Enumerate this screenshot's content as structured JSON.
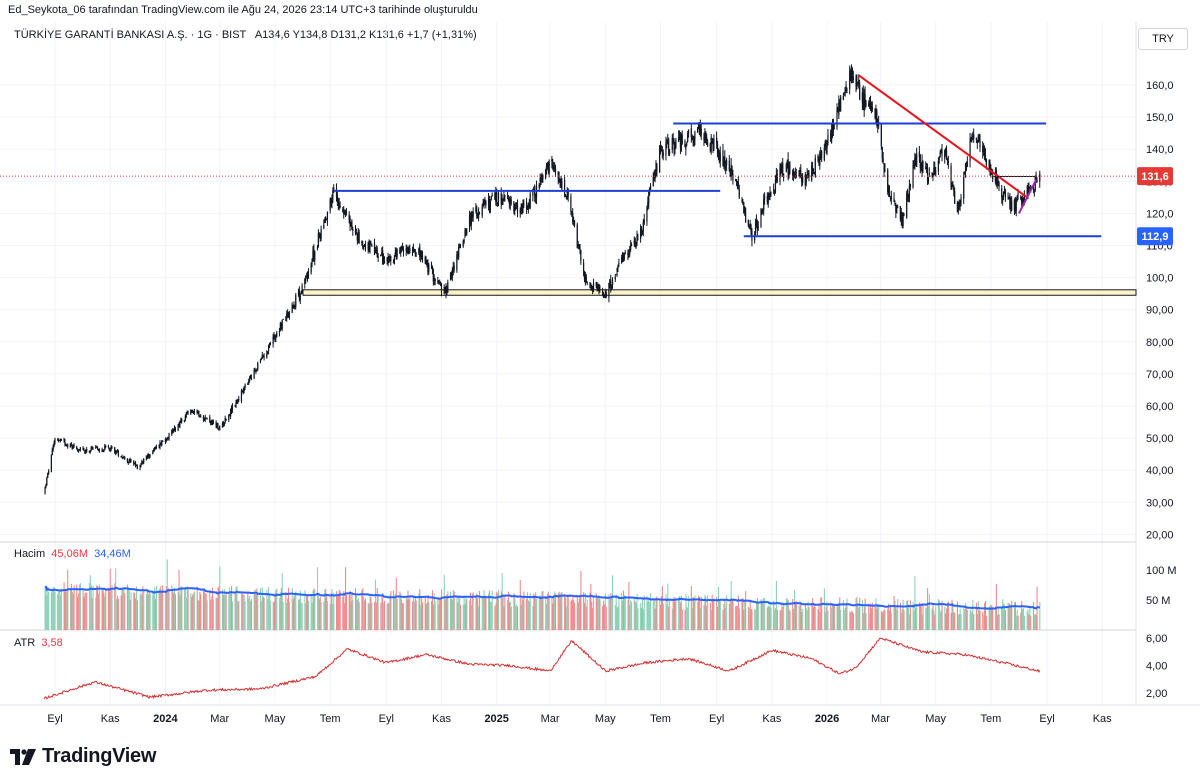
{
  "header": {
    "author_line": "Ed_Seykota_06 tarafından TradingView.com ile Ağu 24, 2026 23:14 UTC+3 tarihinde oluşturuldu",
    "symbol": "TÜRKİYE GARANTİ BANKASI A.Ş. · 1G · BIST",
    "ohlc": "A134,6  Y134,8  D131,2  K131,6  +1,7 (+1,31%)",
    "currency": "TRY"
  },
  "volume_legend": {
    "label": "Hacim",
    "value1": "45,06M",
    "value2": "34,46M"
  },
  "atr_legend": {
    "label": "ATR",
    "value": "3,58"
  },
  "brand": {
    "name": "TradingView"
  },
  "colors": {
    "up": "#26a69a",
    "down": "#ef5350",
    "level_line": "#1e3fd6",
    "trendline": "#e8121a",
    "triangle": "#9c27b0",
    "last_price_bg": "#e53935",
    "label_blue_bg": "#2962ff",
    "vol_ma": "#2962ff",
    "atr": "#d32f2f"
  },
  "chart_data": [
    {
      "type": "line",
      "name": "price",
      "y_axis_ticks": [
        "160,0",
        "150,0",
        "140,0",
        "130,0",
        "120,0",
        "110,0",
        "100,0",
        "90,00",
        "80,00",
        "70,00",
        "60,00",
        "50,00",
        "40,00",
        "30,00",
        "20,00"
      ],
      "ylim": [
        20,
        165
      ],
      "x_axis_ticks": [
        "Eyl",
        "Kas",
        "2024",
        "Mar",
        "May",
        "Tem",
        "Eyl",
        "Kas",
        "2025",
        "Mar",
        "May",
        "Tem",
        "Eyl",
        "Kas",
        "2026",
        "Mar",
        "May",
        "Tem",
        "Eyl",
        "Kas"
      ],
      "x": [
        "2023-08-20",
        "2023-09-01",
        "2023-10-01",
        "2023-11-01",
        "2023-12-01",
        "2024-01-01",
        "2024-02-01",
        "2024-03-01",
        "2024-04-01",
        "2024-05-01",
        "2024-06-01",
        "2024-07-05",
        "2024-08-01",
        "2024-09-01",
        "2024-10-01",
        "2024-11-05",
        "2024-12-01",
        "2025-01-01",
        "2025-02-01",
        "2025-03-01",
        "2025-03-20",
        "2025-04-10",
        "2025-05-01",
        "2025-05-20",
        "2025-06-10",
        "2025-07-01",
        "2025-07-20",
        "2025-08-15",
        "2025-09-01",
        "2025-09-20",
        "2025-10-10",
        "2025-10-25",
        "2025-11-15",
        "2025-12-10",
        "2026-01-05",
        "2026-01-28",
        "2026-02-10",
        "2026-02-25",
        "2026-03-10",
        "2026-03-25",
        "2026-04-10",
        "2026-04-25",
        "2026-05-10",
        "2026-05-25",
        "2026-06-10",
        "2026-06-25",
        "2026-07-10",
        "2026-07-25",
        "2026-08-10",
        "2026-08-24"
      ],
      "y": [
        33,
        50,
        46,
        47,
        41,
        50,
        59,
        53,
        67,
        82,
        97,
        127,
        112,
        105,
        110,
        95,
        118,
        125,
        121,
        135,
        125,
        98,
        95,
        105,
        115,
        140,
        142,
        145,
        140,
        132,
        112,
        124,
        135,
        130,
        145,
        165,
        155,
        150,
        125,
        118,
        138,
        130,
        142,
        120,
        145,
        138,
        128,
        122,
        127,
        131.6
      ],
      "last_price": 131.6,
      "last_price_label": "131,6",
      "support_label": "112,9",
      "levels": [
        {
          "kind": "resistance",
          "value": 148.0,
          "from": "2025-07-15",
          "to": "2026-08-31"
        },
        {
          "kind": "resistance",
          "value": 127.0,
          "from": "2024-07-05",
          "to": "2025-09-05"
        },
        {
          "kind": "support",
          "value": 112.9,
          "from": "2025-10-01",
          "to": "2026-10-31"
        },
        {
          "kind": "zone",
          "from_value": 94.5,
          "to_value": 96.2,
          "from": "2024-06-01",
          "to": "2026-10-31"
        }
      ],
      "trendline": {
        "from": [
          "2026-02-05",
          163
        ],
        "to": [
          "2026-08-10",
          125
        ]
      },
      "triangle": {
        "top": 131.5,
        "apex_date": "2026-08-01",
        "apex_value": 120
      }
    },
    {
      "type": "bar",
      "name": "Hacim",
      "y_axis_ticks": [
        "100 M",
        "50 M"
      ],
      "ylim": [
        0,
        120
      ],
      "note_units": "M",
      "ma_start": 45,
      "ma_end": 34.46
    },
    {
      "type": "line",
      "name": "ATR",
      "y_axis_ticks": [
        "6,00",
        "4,00",
        "2,00"
      ],
      "ylim": [
        0.5,
        6.5
      ],
      "x": [
        "2023-08-20",
        "2023-10-15",
        "2023-12-15",
        "2024-02-15",
        "2024-04-15",
        "2024-06-15",
        "2024-07-20",
        "2024-09-01",
        "2024-10-15",
        "2024-12-01",
        "2025-01-15",
        "2025-03-01",
        "2025-03-25",
        "2025-05-01",
        "2025-06-15",
        "2025-08-01",
        "2025-09-15",
        "2025-11-01",
        "2025-12-15",
        "2026-01-15",
        "2026-02-01",
        "2026-03-01",
        "2026-04-15",
        "2026-06-01",
        "2026-07-15",
        "2026-08-24"
      ],
      "y": [
        1.6,
        2.8,
        1.7,
        2.2,
        2.3,
        3.2,
        5.2,
        4.2,
        4.8,
        4.1,
        4.0,
        3.6,
        5.8,
        3.6,
        4.2,
        4.5,
        3.6,
        5.1,
        4.5,
        3.4,
        3.8,
        6.0,
        5.0,
        4.8,
        4.2,
        3.58
      ]
    }
  ]
}
